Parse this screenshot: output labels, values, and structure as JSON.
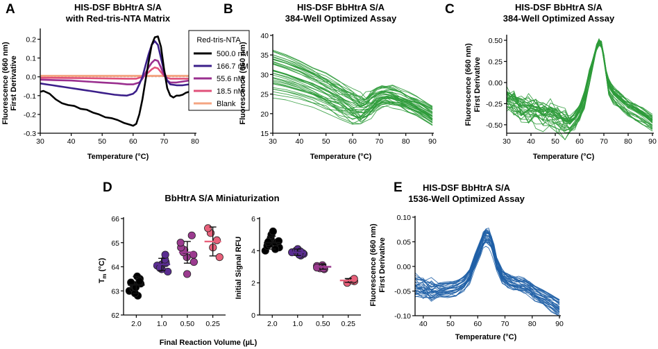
{
  "panels": {
    "A": {
      "letter": "A"
    },
    "B": {
      "letter": "B"
    },
    "C": {
      "letter": "C"
    },
    "D": {
      "letter": "D",
      "shared_xlabel": "Final Reaction Volume (µL)"
    },
    "E": {
      "letter": "E"
    }
  },
  "chart_data": [
    {
      "id": "A",
      "type": "line",
      "title": [
        "HIS-DSF BbHtrA S/A",
        "with Red-tris-NTA Matrix"
      ],
      "xlabel": "Temperature (°C)",
      "ylabel": [
        "Fluorescence (660 nm)",
        "First Derivative"
      ],
      "xlim": [
        30,
        80
      ],
      "ylim": [
        -0.3,
        0.25
      ],
      "xticks": [
        30,
        40,
        50,
        60,
        70,
        80
      ],
      "xtick_labels": [
        "30",
        "40",
        "50",
        "60",
        "70",
        "80"
      ],
      "yticks": [
        -0.3,
        -0.2,
        -0.1,
        0.0,
        0.1,
        0.2
      ],
      "ytick_labels": [
        "-0.3",
        "-0.2",
        "-0.1",
        "0.0",
        "0.1",
        "0.2"
      ],
      "legend": {
        "title": "Red-tris-NTA",
        "position": "top-right"
      },
      "series": [
        {
          "name": "500.0 nM",
          "color": "#000000",
          "x": [
            30,
            31,
            33,
            35,
            37,
            39,
            41,
            43,
            45,
            47,
            49,
            51,
            53,
            55,
            57,
            59,
            60,
            61,
            62,
            63,
            64,
            65,
            66,
            67,
            68,
            69,
            70,
            71,
            72,
            73,
            74,
            75,
            76,
            77,
            78,
            79,
            80
          ],
          "y": [
            -0.08,
            -0.075,
            -0.09,
            -0.12,
            -0.14,
            -0.15,
            -0.155,
            -0.17,
            -0.175,
            -0.19,
            -0.2,
            -0.215,
            -0.22,
            -0.23,
            -0.245,
            -0.255,
            -0.26,
            -0.25,
            -0.2,
            -0.12,
            -0.02,
            0.08,
            0.17,
            0.21,
            0.215,
            0.16,
            0.04,
            -0.06,
            -0.1,
            -0.11,
            -0.1,
            -0.1,
            -0.095,
            -0.085,
            -0.08,
            -0.07,
            -0.07
          ]
        },
        {
          "name": "166.7 nM",
          "color": "#3b1f8a",
          "x": [
            30,
            32,
            34,
            36,
            38,
            40,
            42,
            44,
            46,
            48,
            50,
            52,
            54,
            56,
            58,
            60,
            61,
            62,
            63,
            64,
            65,
            66,
            67,
            68,
            69,
            70,
            71,
            72,
            74,
            76,
            78,
            80
          ],
          "y": [
            -0.035,
            -0.04,
            -0.045,
            -0.05,
            -0.055,
            -0.06,
            -0.065,
            -0.07,
            -0.075,
            -0.08,
            -0.085,
            -0.09,
            -0.095,
            -0.098,
            -0.1,
            -0.09,
            -0.075,
            -0.04,
            0.0,
            0.06,
            0.12,
            0.17,
            0.19,
            0.17,
            0.1,
            0.03,
            -0.02,
            -0.04,
            -0.045,
            -0.045,
            -0.04,
            -0.035
          ]
        },
        {
          "name": "55.6 nM",
          "color": "#9a2f8f",
          "x": [
            30,
            35,
            40,
            45,
            50,
            55,
            58,
            60,
            62,
            63,
            64,
            65,
            66,
            67,
            68,
            69,
            70,
            71,
            72,
            74,
            76,
            78,
            80
          ],
          "y": [
            -0.015,
            -0.018,
            -0.02,
            -0.025,
            -0.03,
            -0.035,
            -0.04,
            -0.04,
            -0.03,
            -0.01,
            0.02,
            0.05,
            0.075,
            0.09,
            0.085,
            0.05,
            0.01,
            -0.02,
            -0.03,
            -0.03,
            -0.025,
            -0.02,
            -0.02
          ]
        },
        {
          "name": "18.5 nM",
          "color": "#e0507a",
          "x": [
            30,
            40,
            50,
            58,
            61,
            63,
            64,
            65,
            66,
            67,
            68,
            69,
            70,
            71,
            72,
            75,
            80
          ],
          "y": [
            -0.005,
            -0.006,
            -0.008,
            -0.01,
            -0.01,
            0.0,
            0.01,
            0.025,
            0.04,
            0.05,
            0.045,
            0.025,
            0.005,
            -0.005,
            -0.01,
            -0.01,
            -0.01
          ]
        },
        {
          "name": "Blank",
          "color": "#f4a582",
          "x": [
            30,
            40,
            50,
            60,
            70,
            80
          ],
          "y": [
            0.005,
            0.005,
            0.005,
            0.005,
            0.005,
            0.005
          ]
        }
      ]
    },
    {
      "id": "B",
      "type": "line",
      "title": [
        "HIS-DSF BbHtrA S/A",
        "384-Well Optimized Assay"
      ],
      "xlabel": "Temperature (°C)",
      "ylabel": [
        "Fluorescence (660 nm)"
      ],
      "xlim": [
        30,
        90
      ],
      "ylim": [
        15,
        40
      ],
      "xticks": [
        30,
        40,
        50,
        60,
        70,
        80,
        90
      ],
      "xtick_labels": [
        "30",
        "40",
        "50",
        "60",
        "70",
        "80",
        "90"
      ],
      "yticks": [
        15,
        20,
        25,
        30,
        35,
        40
      ],
      "ytick_labels": [
        "15",
        "20",
        "25",
        "30",
        "35",
        "40"
      ],
      "color": "#2e9b3a",
      "template": {
        "x": [
          30,
          35,
          40,
          45,
          50,
          55,
          60,
          63,
          65,
          67,
          69,
          71,
          73,
          75,
          78,
          81,
          84,
          87,
          90
        ],
        "y": [
          32.5,
          31.5,
          30.3,
          28.8,
          27.0,
          25.0,
          23.2,
          22.4,
          22.6,
          23.5,
          24.5,
          25.0,
          25.0,
          24.7,
          24.0,
          23.0,
          22.0,
          20.8,
          19.5
        ]
      },
      "n_curves": 40,
      "start_range": [
        24,
        36.5
      ],
      "end_range": [
        17,
        22
      ],
      "repeat_dip_depth": 3
    },
    {
      "id": "C",
      "type": "line",
      "title": [
        "HIS-DSF BbHtrA S/A",
        "384-Well Optimized Assay"
      ],
      "xlabel": "Temperature (°C)",
      "ylabel": [
        "Fluorescence (660 nm)",
        "First Derivative"
      ],
      "xlim": [
        30,
        90
      ],
      "ylim": [
        -0.6,
        0.55
      ],
      "xticks": [
        30,
        40,
        50,
        60,
        70,
        80,
        90
      ],
      "xtick_labels": [
        "30",
        "40",
        "50",
        "60",
        "70",
        "80",
        "90"
      ],
      "yticks": [
        -0.5,
        -0.25,
        0.0,
        0.25,
        0.5
      ],
      "ytick_labels": [
        "-0.50",
        "-0.25",
        "0.00",
        "0.25",
        "0.50"
      ],
      "color": "#2e9b3a",
      "template": {
        "x": [
          30,
          33,
          36,
          39,
          42,
          45,
          48,
          51,
          54,
          56,
          58,
          60,
          62,
          64,
          66,
          67,
          68,
          69,
          70,
          71,
          72,
          74,
          76,
          78,
          80,
          83,
          86,
          90
        ],
        "y": [
          -0.2,
          -0.25,
          -0.3,
          -0.32,
          -0.34,
          -0.37,
          -0.4,
          -0.44,
          -0.48,
          -0.5,
          -0.45,
          -0.35,
          -0.2,
          0.05,
          0.3,
          0.42,
          0.48,
          0.45,
          0.3,
          0.1,
          -0.05,
          -0.15,
          -0.2,
          -0.25,
          -0.3,
          -0.35,
          -0.4,
          -0.48
        ]
      },
      "n_curves": 34,
      "peak": {
        "temperature": 68,
        "value": 0.48
      }
    },
    {
      "id": "D",
      "type": "scatter",
      "title": "BbHtrA S/A Miniaturization",
      "xlabel": "Final Reaction Volume (µL)",
      "categories": [
        "2.0",
        "1.0",
        "0.50",
        "0.25"
      ],
      "category_colors": [
        "#000000",
        "#5a2d91",
        "#9b3b8f",
        "#e8607a"
      ],
      "subplots": [
        {
          "ylabel": "Tm (°C)",
          "ylim": [
            62,
            66
          ],
          "yticks": [
            62,
            63,
            64,
            65,
            66
          ],
          "ytick_labels": [
            "62",
            "63",
            "64",
            "65",
            "66"
          ],
          "means": [
            63.25,
            64.1,
            64.6,
            65.05
          ],
          "sd": [
            0.35,
            0.25,
            0.45,
            0.6
          ],
          "points": [
            [
              63.0,
              63.1,
              63.2,
              63.25,
              63.3,
              63.35,
              63.5,
              63.6,
              62.8,
              62.9,
              63.4,
              63.15
            ],
            [
              63.8,
              63.9,
              64.0,
              64.1,
              64.15,
              64.2,
              64.3,
              64.5,
              64.05,
              63.95
            ],
            [
              63.7,
              64.2,
              64.4,
              64.6,
              64.7,
              64.8,
              65.0,
              65.3,
              64.5
            ],
            [
              64.4,
              64.8,
              65.1,
              65.4,
              65.6
            ]
          ]
        },
        {
          "ylabel": "Initial Signal RFU",
          "ylim": [
            0,
            6
          ],
          "yticks": [
            0,
            2,
            4,
            6
          ],
          "ytick_labels": [
            "0",
            "2",
            "4",
            "6"
          ],
          "means": [
            4.5,
            3.9,
            3.0,
            2.15
          ],
          "sd": [
            0.4,
            0.2,
            0.15,
            0.12
          ],
          "points": [
            [
              4.0,
              4.2,
              4.3,
              4.4,
              4.5,
              4.6,
              4.7,
              4.8,
              5.0,
              5.2,
              4.1,
              4.55
            ],
            [
              3.7,
              3.8,
              3.9,
              4.0,
              4.1,
              3.85,
              3.95,
              3.75
            ],
            [
              2.85,
              2.9,
              3.0,
              3.05,
              3.1,
              2.95,
              3.0,
              2.9
            ],
            [
              2.0,
              2.1,
              2.15,
              2.2,
              2.25
            ]
          ]
        }
      ]
    },
    {
      "id": "E",
      "type": "line",
      "title": [
        "HIS-DSF BbHtrA S/A",
        "1536-Well Optimized Assay"
      ],
      "xlabel": "Temperature (°C)",
      "ylabel": [
        "Fluorescence (660 nm)",
        "First Derivative"
      ],
      "xlim": [
        37,
        90
      ],
      "ylim": [
        -0.1,
        0.1
      ],
      "xticks": [
        40,
        50,
        60,
        70,
        80,
        90
      ],
      "xtick_labels": [
        "40",
        "50",
        "60",
        "70",
        "80",
        "90"
      ],
      "yticks": [
        -0.1,
        -0.05,
        0.0,
        0.05,
        0.1
      ],
      "ytick_labels": [
        "-0.10",
        "-0.05",
        "0.00",
        "0.05",
        "0.10"
      ],
      "color": "#1f5fa6",
      "template": {
        "x": [
          37,
          40,
          43,
          46,
          49,
          52,
          55,
          57,
          59,
          61,
          62,
          63,
          64,
          65,
          66,
          67,
          69,
          71,
          73,
          75,
          77,
          79,
          81,
          84,
          87,
          90
        ],
        "y": [
          -0.04,
          -0.045,
          -0.05,
          -0.05,
          -0.048,
          -0.045,
          -0.035,
          -0.02,
          0.01,
          0.04,
          0.055,
          0.062,
          0.06,
          0.05,
          0.03,
          0.005,
          -0.02,
          -0.03,
          -0.035,
          -0.038,
          -0.04,
          -0.045,
          -0.055,
          -0.065,
          -0.075,
          -0.085
        ]
      },
      "n_curves": 30
    }
  ]
}
